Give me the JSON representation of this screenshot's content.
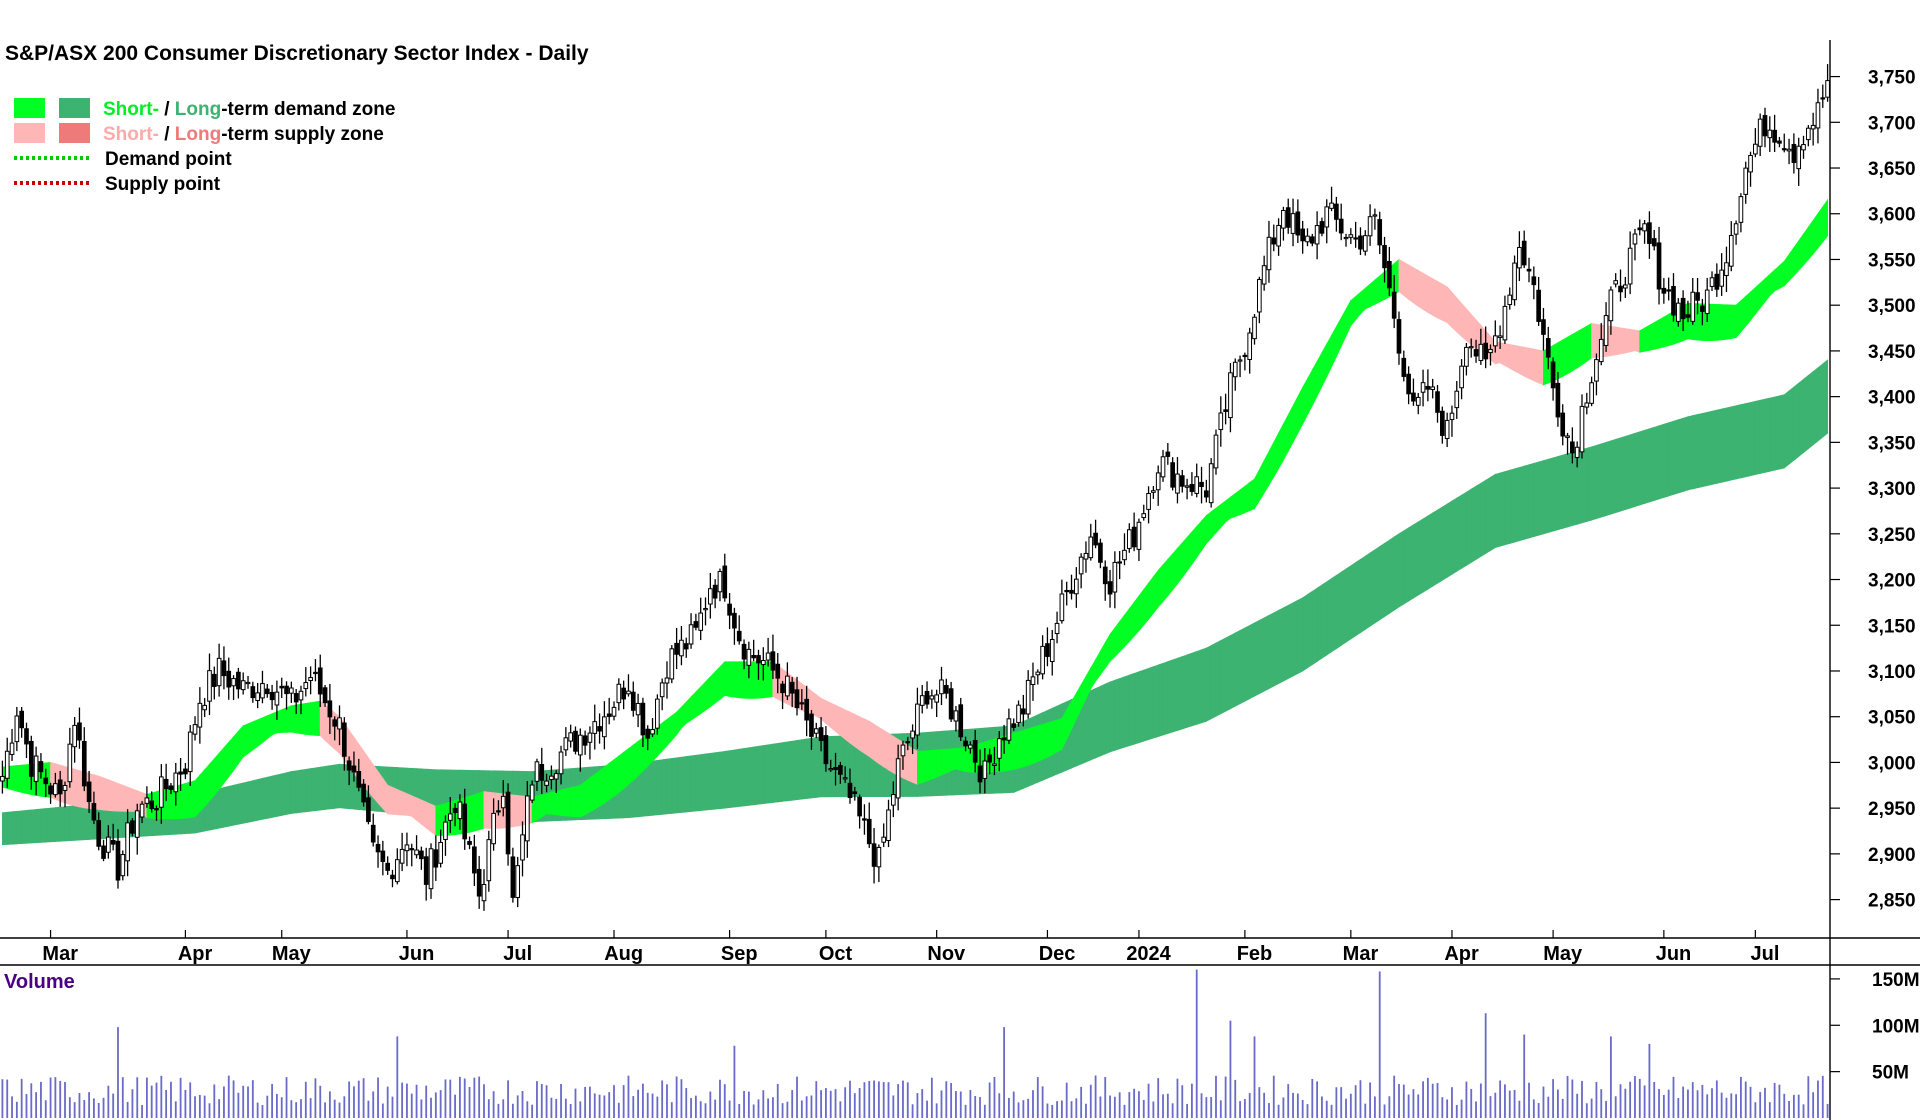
{
  "chart_data": {
    "type": "candlestick",
    "title": "S&P/ASX 200 Consumer Discretionary Sector Index - Daily",
    "legend": {
      "demand_zone": {
        "short": "Short-",
        "sep": " / ",
        "long": "Long",
        "rest": "-term demand zone"
      },
      "supply_zone": {
        "short": "Short-",
        "sep": " / ",
        "long": "Long",
        "rest": "-term supply zone"
      },
      "demand_point": "Demand point",
      "supply_point": "Supply point",
      "placement": "top-left"
    },
    "price_axis": {
      "ticks": [
        2850,
        2900,
        2950,
        3000,
        3050,
        3100,
        3150,
        3200,
        3250,
        3300,
        3350,
        3400,
        3450,
        3500,
        3550,
        3600,
        3650,
        3700,
        3750
      ],
      "tick_labels": [
        "2,850",
        "2,900",
        "2,950",
        "3,000",
        "3,050",
        "3,100",
        "3,150",
        "3,200",
        "3,250",
        "3,300",
        "3,350",
        "3,400",
        "3,450",
        "3,500",
        "3,550",
        "3,600",
        "3,650",
        "3,700",
        "3,750"
      ],
      "range": [
        2808,
        3790
      ],
      "side": "right"
    },
    "time_axis": {
      "labels": [
        "Mar",
        "Apr",
        "May",
        "Jun",
        "Jul",
        "Aug",
        "Sep",
        "Oct",
        "Nov",
        "Dec",
        "2024",
        "Feb",
        "Mar",
        "Apr",
        "May",
        "Jun",
        "Jul"
      ],
      "label_bar_index": [
        12,
        40,
        60,
        86,
        107,
        129,
        153,
        173,
        196,
        219,
        238,
        260,
        282,
        303,
        324,
        347,
        366
      ],
      "total_bars": 380
    },
    "price_anchors": {
      "bar_index": [
        0,
        3,
        6,
        12,
        15,
        18,
        20,
        24,
        28,
        32,
        38,
        41,
        45,
        50,
        55,
        60,
        64,
        70,
        74,
        77,
        80,
        84,
        88,
        94,
        99,
        104,
        106,
        110,
        114,
        120,
        126,
        130,
        134,
        138,
        144,
        147,
        150,
        153,
        155,
        158,
        162,
        166,
        170,
        176,
        182,
        186,
        190,
        192,
        196,
        199,
        204,
        207,
        212,
        214,
        218,
        222,
        226,
        230,
        235,
        240,
        245,
        250,
        255,
        258,
        262,
        266,
        270,
        275,
        281,
        285,
        289,
        293,
        296,
        300,
        304,
        308,
        312,
        315,
        318,
        322,
        326,
        330,
        334,
        337,
        341,
        345,
        349,
        354,
        358,
        362,
        366,
        369,
        372,
        374,
        377,
        379
      ],
      "close": [
        2985,
        3060,
        3000,
        2960,
        3050,
        2955,
        2920,
        2885,
        2950,
        2960,
        3000,
        3070,
        3100,
        3080,
        3090,
        3065,
        3095,
        3040,
        2960,
        2900,
        2880,
        2920,
        2875,
        2960,
        2855,
        2980,
        2845,
        2985,
        3000,
        3030,
        3060,
        3090,
        3030,
        3110,
        3140,
        3195,
        3195,
        3140,
        3120,
        3110,
        3090,
        3050,
        3010,
        2960,
        2890,
        2995,
        3050,
        3080,
        3070,
        3040,
        2985,
        3030,
        3060,
        3090,
        3140,
        3200,
        3250,
        3200,
        3250,
        3330,
        3310,
        3300,
        3410,
        3460,
        3540,
        3610,
        3560,
        3600,
        3570,
        3590,
        3490,
        3380,
        3410,
        3360,
        3470,
        3430,
        3500,
        3570,
        3520,
        3410,
        3340,
        3430,
        3500,
        3540,
        3580,
        3520,
        3490,
        3510,
        3560,
        3650,
        3700,
        3690,
        3670,
        3690,
        3710,
        3745
      ]
    },
    "zones": {
      "short_term_band_top_anchors": {
        "bar_index": [
          0,
          10,
          20,
          30,
          40,
          50,
          60,
          66,
          70,
          80,
          90,
          100,
          110,
          120,
          130,
          140,
          150,
          160,
          170,
          180,
          190,
          200,
          210,
          220,
          230,
          240,
          250,
          260,
          270,
          280,
          290,
          300,
          310,
          320,
          330,
          340,
          350,
          360,
          370,
          379
        ],
        "value": [
          2995,
          3000,
          2985,
          2965,
          2980,
          3040,
          3062,
          3067,
          3050,
          2975,
          2952,
          2968,
          2962,
          2975,
          3015,
          3055,
          3110,
          3110,
          3070,
          3045,
          3012,
          3016,
          3032,
          3048,
          3140,
          3210,
          3270,
          3310,
          3410,
          3505,
          3550,
          3520,
          3460,
          3450,
          3480,
          3472,
          3502,
          3500,
          3548,
          3615
        ]
      },
      "long_term_band_top_anchors": {
        "bar_index": [
          0,
          20,
          40,
          60,
          70,
          90,
          110,
          130,
          150,
          170,
          190,
          210,
          230,
          250,
          270,
          290,
          310,
          330,
          350,
          370,
          379
        ],
        "value": [
          2945,
          2955,
          2965,
          2990,
          2998,
          2992,
          2990,
          2998,
          3012,
          3028,
          3032,
          3040,
          3088,
          3125,
          3180,
          3250,
          3315,
          3345,
          3378,
          3402,
          3440
        ]
      },
      "colors": {
        "short_demand": "#00ff22",
        "long_demand": "#3cb371",
        "short_supply": "#ffb6b6",
        "long_supply": "#ff6622",
        "demand_point": "#00cc00",
        "supply_point": "#cc0000"
      }
    },
    "volume": {
      "label": "Volume",
      "ticks": [
        50,
        100,
        150
      ],
      "tick_labels": [
        "50M",
        "100M",
        "150M"
      ],
      "unit": "M",
      "range": [
        0,
        165
      ],
      "spikes": [
        {
          "bar_index": 24,
          "value": 98
        },
        {
          "bar_index": 82,
          "value": 88
        },
        {
          "bar_index": 152,
          "value": 78
        },
        {
          "bar_index": 208,
          "value": 98
        },
        {
          "bar_index": 248,
          "value": 160
        },
        {
          "bar_index": 255,
          "value": 105
        },
        {
          "bar_index": 260,
          "value": 88
        },
        {
          "bar_index": 286,
          "value": 158
        },
        {
          "bar_index": 308,
          "value": 113
        },
        {
          "bar_index": 316,
          "value": 90
        },
        {
          "bar_index": 334,
          "value": 88
        },
        {
          "bar_index": 342,
          "value": 80
        }
      ],
      "bar_color": "#6a6ac8"
    }
  }
}
